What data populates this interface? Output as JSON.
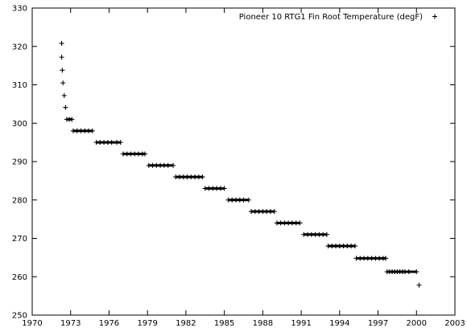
{
  "chart_data": {
    "type": "scatter",
    "title": "",
    "xlabel": "",
    "ylabel": "",
    "xlim": [
      1970,
      2003
    ],
    "ylim": [
      250,
      330
    ],
    "x_ticks": [
      "1970",
      "1973",
      "1976",
      "1979",
      "1982",
      "1985",
      "1988",
      "1991",
      "1994",
      "1997",
      "2000",
      "2003"
    ],
    "x_tick_values": [
      1970,
      1973,
      1976,
      1979,
      1982,
      1985,
      1988,
      1991,
      1994,
      1997,
      2000,
      2003
    ],
    "y_ticks": [
      "250",
      "260",
      "270",
      "280",
      "290",
      "300",
      "310",
      "320",
      "330"
    ],
    "y_tick_values": [
      250,
      260,
      270,
      280,
      290,
      300,
      310,
      320,
      330
    ],
    "grid": false,
    "legend_position": "top-right",
    "marker": "plus",
    "series": [
      {
        "name": "Pioneer 10 RTG1 Fin Root Temperature (degF)",
        "color": "#000000",
        "points": [
          [
            1972.3,
            320.8
          ],
          [
            1972.3,
            317.2
          ],
          [
            1972.35,
            313.8
          ],
          [
            1972.4,
            310.5
          ],
          [
            1972.5,
            307.2
          ],
          [
            1972.6,
            304.1
          ],
          [
            1972.7,
            301.0
          ],
          [
            1972.9,
            301.0
          ],
          [
            1973.1,
            301.0
          ],
          [
            1973.2,
            298.0
          ],
          [
            1973.5,
            298.0
          ],
          [
            1973.8,
            298.0
          ],
          [
            1974.1,
            298.0
          ],
          [
            1974.4,
            298.0
          ],
          [
            1974.7,
            298.0
          ],
          [
            1975.0,
            295.0
          ],
          [
            1975.3,
            295.0
          ],
          [
            1975.6,
            295.0
          ],
          [
            1975.9,
            295.0
          ],
          [
            1976.2,
            295.0
          ],
          [
            1976.6,
            295.0
          ],
          [
            1976.9,
            295.0
          ],
          [
            1977.1,
            292.0
          ],
          [
            1977.4,
            292.0
          ],
          [
            1977.7,
            292.0
          ],
          [
            1978.0,
            292.0
          ],
          [
            1978.3,
            292.0
          ],
          [
            1978.6,
            292.0
          ],
          [
            1978.8,
            292.0
          ],
          [
            1979.1,
            289.0
          ],
          [
            1979.4,
            289.0
          ],
          [
            1979.7,
            289.0
          ],
          [
            1980.0,
            289.0
          ],
          [
            1980.3,
            289.0
          ],
          [
            1980.6,
            289.0
          ],
          [
            1981.0,
            289.0
          ],
          [
            1981.2,
            286.0
          ],
          [
            1981.5,
            286.0
          ],
          [
            1981.8,
            286.0
          ],
          [
            1982.1,
            286.0
          ],
          [
            1982.4,
            286.0
          ],
          [
            1982.7,
            286.0
          ],
          [
            1983.0,
            286.0
          ],
          [
            1983.3,
            286.0
          ],
          [
            1983.5,
            283.0
          ],
          [
            1983.8,
            283.0
          ],
          [
            1984.1,
            283.0
          ],
          [
            1984.4,
            283.0
          ],
          [
            1984.7,
            283.0
          ],
          [
            1985.0,
            283.0
          ],
          [
            1985.3,
            280.0
          ],
          [
            1985.6,
            280.0
          ],
          [
            1985.9,
            280.0
          ],
          [
            1986.2,
            280.0
          ],
          [
            1986.5,
            280.0
          ],
          [
            1986.9,
            280.0
          ],
          [
            1987.1,
            277.0
          ],
          [
            1987.4,
            277.0
          ],
          [
            1987.7,
            277.0
          ],
          [
            1988.0,
            277.0
          ],
          [
            1988.3,
            277.0
          ],
          [
            1988.6,
            277.0
          ],
          [
            1988.9,
            277.0
          ],
          [
            1989.1,
            274.0
          ],
          [
            1989.4,
            274.0
          ],
          [
            1989.7,
            274.0
          ],
          [
            1990.0,
            274.0
          ],
          [
            1990.3,
            274.0
          ],
          [
            1990.6,
            274.0
          ],
          [
            1990.9,
            274.0
          ],
          [
            1991.2,
            271.0
          ],
          [
            1991.5,
            271.0
          ],
          [
            1991.8,
            271.0
          ],
          [
            1992.1,
            271.0
          ],
          [
            1992.4,
            271.0
          ],
          [
            1992.7,
            271.0
          ],
          [
            1993.0,
            271.0
          ],
          [
            1993.1,
            268.0
          ],
          [
            1993.4,
            268.0
          ],
          [
            1993.7,
            268.0
          ],
          [
            1994.0,
            268.0
          ],
          [
            1994.3,
            268.0
          ],
          [
            1994.6,
            268.0
          ],
          [
            1994.9,
            268.0
          ],
          [
            1995.2,
            268.0
          ],
          [
            1995.3,
            264.8
          ],
          [
            1995.6,
            264.8
          ],
          [
            1995.9,
            264.8
          ],
          [
            1996.2,
            264.8
          ],
          [
            1996.5,
            264.8
          ],
          [
            1996.8,
            264.8
          ],
          [
            1997.1,
            264.8
          ],
          [
            1997.4,
            264.8
          ],
          [
            1997.6,
            264.8
          ],
          [
            1997.7,
            261.3
          ],
          [
            1997.9,
            261.3
          ],
          [
            1998.1,
            261.3
          ],
          [
            1998.3,
            261.3
          ],
          [
            1998.5,
            261.3
          ],
          [
            1998.7,
            261.3
          ],
          [
            1998.9,
            261.3
          ],
          [
            1999.1,
            261.3
          ],
          [
            1999.4,
            261.3
          ],
          [
            2000.0,
            261.3
          ],
          [
            2000.2,
            257.8
          ]
        ]
      }
    ]
  }
}
